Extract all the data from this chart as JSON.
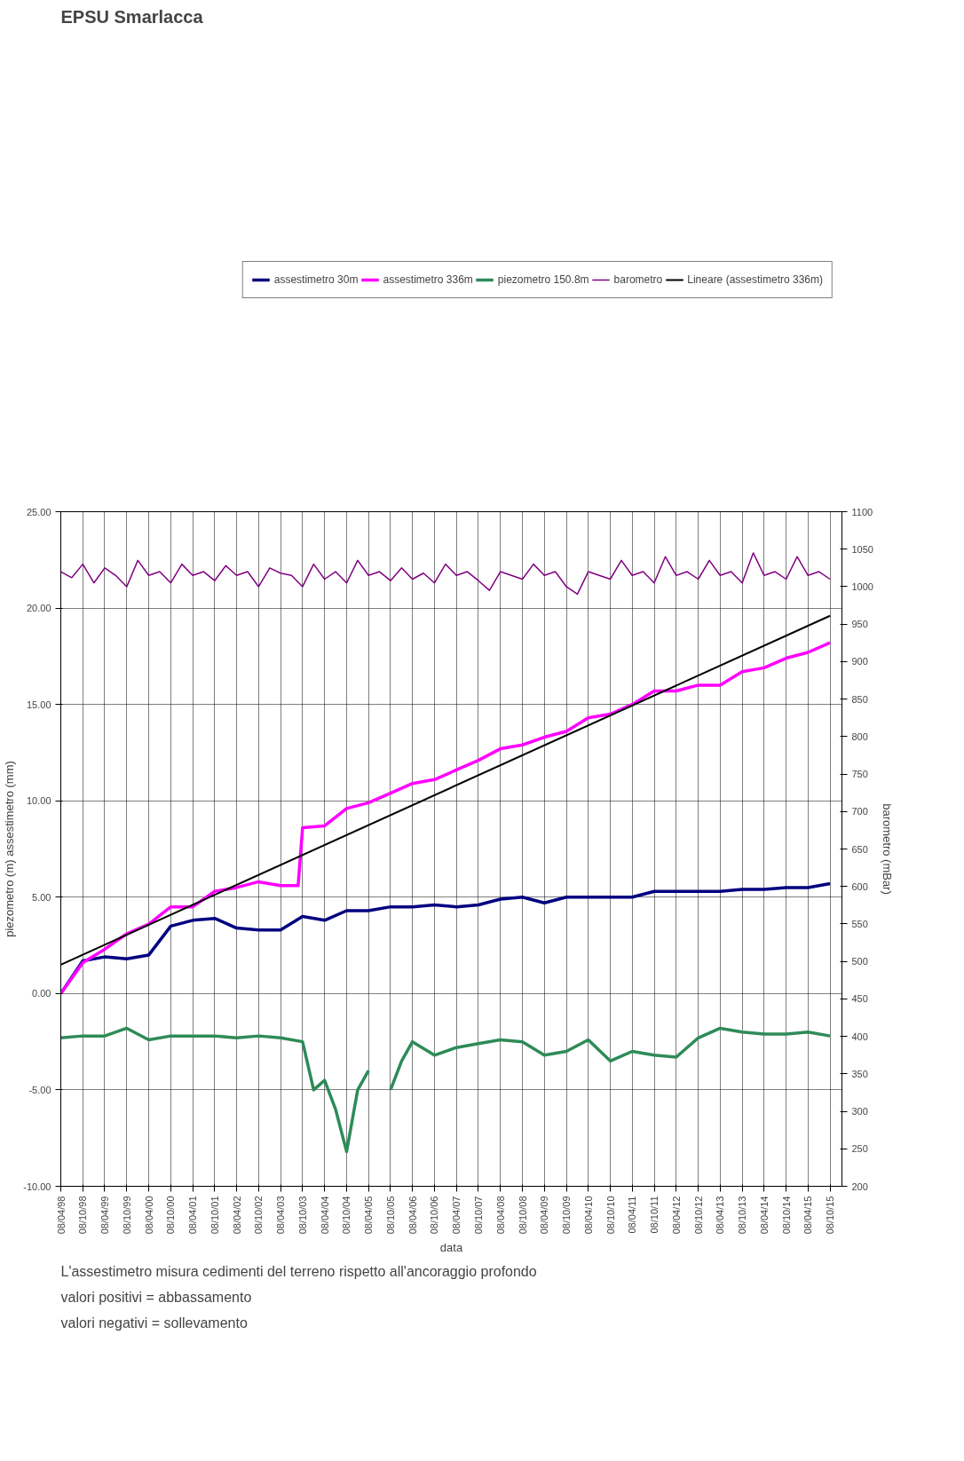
{
  "chart_data": {
    "type": "line",
    "title": "EPSU Smarlacca",
    "xlabel": "data",
    "ylabel": "piezometro (m) assestimetro (mm)",
    "y2label": "barometro (mBar)",
    "annotations": [
      "L'assestimetro misura cedimenti del terreno rispetto all'ancoraggio profondo",
      "valori positivi = abbassamento",
      "valori negativi = sollevamento"
    ],
    "legend": "top",
    "grid": true,
    "line_style": "solid",
    "marker": "none",
    "xlim": [
      "1998-04-08",
      "2016-01-15"
    ],
    "xticks": [
      {
        "value": "1998-04-08",
        "label": "08/04/98"
      },
      {
        "value": "1998-10-08",
        "label": "08/10/98"
      },
      {
        "value": "1999-04-08",
        "label": "08/04/99"
      },
      {
        "value": "1999-10-08",
        "label": "08/10/99"
      },
      {
        "value": "2000-04-08",
        "label": "08/04/00"
      },
      {
        "value": "2000-10-08",
        "label": "08/10/00"
      },
      {
        "value": "2001-04-08",
        "label": "08/04/01"
      },
      {
        "value": "2001-10-08",
        "label": "08/10/01"
      },
      {
        "value": "2002-04-08",
        "label": "08/04/02"
      },
      {
        "value": "2002-10-08",
        "label": "08/10/02"
      },
      {
        "value": "2003-04-08",
        "label": "08/04/03"
      },
      {
        "value": "2003-10-08",
        "label": "08/10/03"
      },
      {
        "value": "2004-04-08",
        "label": "08/04/04"
      },
      {
        "value": "2004-10-08",
        "label": "08/10/04"
      },
      {
        "value": "2005-04-08",
        "label": "08/04/05"
      },
      {
        "value": "2005-10-08",
        "label": "08/10/05"
      },
      {
        "value": "2006-04-08",
        "label": "08/04/06"
      },
      {
        "value": "2006-10-08",
        "label": "08/10/06"
      },
      {
        "value": "2007-04-08",
        "label": "08/04/07"
      },
      {
        "value": "2007-10-08",
        "label": "08/10/07"
      },
      {
        "value": "2008-04-08",
        "label": "08/04/08"
      },
      {
        "value": "2008-10-08",
        "label": "08/10/08"
      },
      {
        "value": "2009-04-08",
        "label": "08/04/09"
      },
      {
        "value": "2009-10-08",
        "label": "08/10/09"
      },
      {
        "value": "2010-04-08",
        "label": "08/04/10"
      },
      {
        "value": "2010-10-08",
        "label": "08/10/10"
      },
      {
        "value": "2011-04-08",
        "label": "08/04/11"
      },
      {
        "value": "2011-10-08",
        "label": "08/10/11"
      },
      {
        "value": "2012-04-08",
        "label": "08/04/12"
      },
      {
        "value": "2012-10-08",
        "label": "08/10/12"
      },
      {
        "value": "2013-04-08",
        "label": "08/04/13"
      },
      {
        "value": "2013-10-08",
        "label": "08/10/13"
      },
      {
        "value": "2014-04-08",
        "label": "08/04/14"
      },
      {
        "value": "2014-10-08",
        "label": "08/10/14"
      },
      {
        "value": "2015-04-08",
        "label": "08/04/15"
      },
      {
        "value": "2015-10-08",
        "label": "08/10/15"
      }
    ],
    "ylim": [
      -10,
      25
    ],
    "yticks": [
      {
        "value": -10,
        "label": "-10.00"
      },
      {
        "value": -5,
        "label": "-5.00"
      },
      {
        "value": 0,
        "label": "0.00"
      },
      {
        "value": 5,
        "label": "5.00"
      },
      {
        "value": 10,
        "label": "10.00"
      },
      {
        "value": 15,
        "label": "15.00"
      },
      {
        "value": 20,
        "label": "20.00"
      },
      {
        "value": 25,
        "label": "25.00"
      }
    ],
    "y2lim": [
      200,
      1100
    ],
    "y2ticks": [
      200,
      250,
      300,
      350,
      400,
      450,
      500,
      550,
      600,
      650,
      700,
      750,
      800,
      850,
      900,
      950,
      1000,
      1050,
      1100
    ],
    "series": [
      {
        "name": "assestimetro 30m",
        "color": "#000080",
        "x": [
          "1998-04-08",
          "1998-10-08",
          "1999-04-08",
          "1999-10-08",
          "2000-04-08",
          "2000-10-08",
          "2001-04-08",
          "2001-10-08",
          "2002-04-08",
          "2002-10-08",
          "2003-04-08",
          "2003-10-08",
          "2004-04-08",
          "2004-10-08",
          "2005-04-08",
          "2005-10-08",
          "2006-04-08",
          "2006-10-08",
          "2007-04-08",
          "2007-10-08",
          "2008-04-08",
          "2008-10-08",
          "2009-04-08",
          "2009-10-08",
          "2010-04-08",
          "2010-10-08",
          "2011-04-08",
          "2011-10-08",
          "2012-04-08",
          "2012-10-08",
          "2013-04-08",
          "2013-10-08",
          "2014-04-08",
          "2014-10-08",
          "2015-04-08",
          "2015-10-08"
        ],
        "values": [
          0.0,
          1.7,
          1.9,
          1.8,
          2.0,
          3.5,
          3.8,
          3.9,
          3.4,
          3.3,
          3.3,
          4.0,
          3.8,
          4.3,
          4.3,
          4.5,
          4.5,
          4.6,
          4.5,
          4.6,
          4.9,
          5.0,
          4.7,
          5.0,
          5.0,
          5.0,
          5.0,
          5.3,
          5.3,
          5.3,
          5.3,
          5.4,
          5.4,
          5.5,
          5.5,
          5.7
        ]
      },
      {
        "name": "assestimetro 336m",
        "color": "#ff00ff",
        "x": [
          "1998-04-08",
          "1998-10-08",
          "1999-04-08",
          "1999-10-08",
          "2000-04-08",
          "2000-10-08",
          "2001-04-08",
          "2001-10-08",
          "2002-04-08",
          "2002-10-08",
          "2003-04-08",
          "2003-09-01",
          "2003-10-08",
          "2004-04-08",
          "2004-10-08",
          "2005-04-08",
          "2005-10-08",
          "2006-04-08",
          "2006-10-08",
          "2007-04-08",
          "2007-10-08",
          "2008-04-08",
          "2008-10-08",
          "2009-04-08",
          "2009-10-08",
          "2010-04-08",
          "2010-10-08",
          "2011-04-08",
          "2011-10-08",
          "2012-04-08",
          "2012-10-08",
          "2013-04-08",
          "2013-10-08",
          "2014-04-08",
          "2014-10-08",
          "2015-04-08",
          "2015-10-08"
        ],
        "values": [
          0.0,
          1.6,
          2.3,
          3.1,
          3.6,
          4.5,
          4.5,
          5.3,
          5.5,
          5.8,
          5.6,
          5.6,
          8.6,
          8.7,
          9.6,
          9.9,
          10.4,
          10.9,
          11.1,
          11.6,
          12.1,
          12.7,
          12.9,
          13.3,
          13.6,
          14.3,
          14.5,
          15.0,
          15.7,
          15.7,
          16.0,
          16.0,
          16.7,
          16.9,
          17.4,
          17.7,
          18.2
        ]
      },
      {
        "name": "piezometro 150.8m",
        "color": "#2e8b57",
        "x": [
          "1998-04-08",
          "1998-10-08",
          "1999-04-08",
          "1999-10-08",
          "2000-04-08",
          "2000-10-08",
          "2001-04-08",
          "2001-10-08",
          "2002-04-08",
          "2002-10-08",
          "2003-04-08",
          "2003-10-08",
          "2004-01-08",
          "2004-04-08",
          "2004-07-08",
          "2004-10-08",
          "2005-01-08",
          "2005-04-08",
          "2005-07-08",
          "2005-10-08",
          "2006-01-08",
          "2006-04-08",
          "2006-10-08",
          "2007-04-08",
          "2007-10-08",
          "2008-04-08",
          "2008-10-08",
          "2009-04-08",
          "2009-10-08",
          "2010-04-08",
          "2010-10-08",
          "2011-04-08",
          "2011-10-08",
          "2012-04-08",
          "2012-10-08",
          "2013-04-08",
          "2013-10-08",
          "2014-04-08",
          "2014-10-08",
          "2015-04-08",
          "2015-10-08"
        ],
        "values": [
          -2.3,
          -2.2,
          -2.2,
          -1.8,
          -2.4,
          -2.2,
          -2.2,
          -2.2,
          -2.3,
          -2.2,
          -2.3,
          -2.5,
          -5.0,
          -4.5,
          -6.0,
          -8.2,
          -5.0,
          -4.0,
          null,
          -5.0,
          -3.5,
          -2.5,
          -3.2,
          -2.8,
          -2.6,
          -2.4,
          -2.5,
          -3.2,
          -3.0,
          -2.4,
          -3.5,
          -3.0,
          -3.2,
          -3.3,
          -2.3,
          -1.8,
          -2.0,
          -2.1,
          -2.1,
          -2.0,
          -2.2
        ]
      },
      {
        "name": "barometro",
        "color": "#800080",
        "axis": "y2",
        "x": [
          "1998-04-08",
          "1998-07-08",
          "1998-10-08",
          "1999-01-08",
          "1999-04-08",
          "1999-07-08",
          "1999-10-08",
          "2000-01-08",
          "2000-04-08",
          "2000-07-08",
          "2000-10-08",
          "2001-01-08",
          "2001-04-08",
          "2001-07-08",
          "2001-10-08",
          "2002-01-08",
          "2002-04-08",
          "2002-07-08",
          "2002-10-08",
          "2003-01-08",
          "2003-04-08",
          "2003-07-08",
          "2003-10-08",
          "2004-01-08",
          "2004-04-08",
          "2004-07-08",
          "2004-10-08",
          "2005-01-08",
          "2005-04-08",
          "2005-07-08",
          "2005-10-08",
          "2006-01-08",
          "2006-04-08",
          "2006-07-08",
          "2006-10-08",
          "2007-01-08",
          "2007-04-08",
          "2007-07-08",
          "2007-10-08",
          "2008-01-08",
          "2008-04-08",
          "2008-07-08",
          "2008-10-08",
          "2009-01-08",
          "2009-04-08",
          "2009-07-08",
          "2009-10-08",
          "2010-01-08",
          "2010-04-08",
          "2010-07-08",
          "2010-10-08",
          "2011-01-08",
          "2011-04-08",
          "2011-07-08",
          "2011-10-08",
          "2012-01-08",
          "2012-04-08",
          "2012-07-08",
          "2012-10-08",
          "2013-01-08",
          "2013-04-08",
          "2013-07-08",
          "2013-10-08",
          "2014-01-08",
          "2014-04-08",
          "2014-07-08",
          "2014-10-08",
          "2015-01-08",
          "2015-04-08",
          "2015-07-08",
          "2015-10-08"
        ],
        "values": [
          1020,
          1012,
          1030,
          1005,
          1025,
          1015,
          1000,
          1035,
          1015,
          1020,
          1005,
          1030,
          1015,
          1020,
          1008,
          1028,
          1015,
          1020,
          1000,
          1025,
          1018,
          1015,
          1000,
          1030,
          1010,
          1020,
          1005,
          1035,
          1015,
          1020,
          1008,
          1025,
          1010,
          1018,
          1005,
          1030,
          1015,
          1020,
          1008,
          995,
          1020,
          1015,
          1010,
          1030,
          1015,
          1020,
          1000,
          990,
          1020,
          1015,
          1010,
          1035,
          1015,
          1020,
          1005,
          1040,
          1015,
          1020,
          1010,
          1035,
          1015,
          1020,
          1005,
          1045,
          1015,
          1020,
          1010,
          1040,
          1015,
          1020,
          1010
        ]
      },
      {
        "name": "Lineare (assestimetro 336m)",
        "color": "#000000",
        "x": [
          "1998-04-08",
          "2015-10-08"
        ],
        "values": [
          1.5,
          19.6
        ]
      }
    ]
  }
}
